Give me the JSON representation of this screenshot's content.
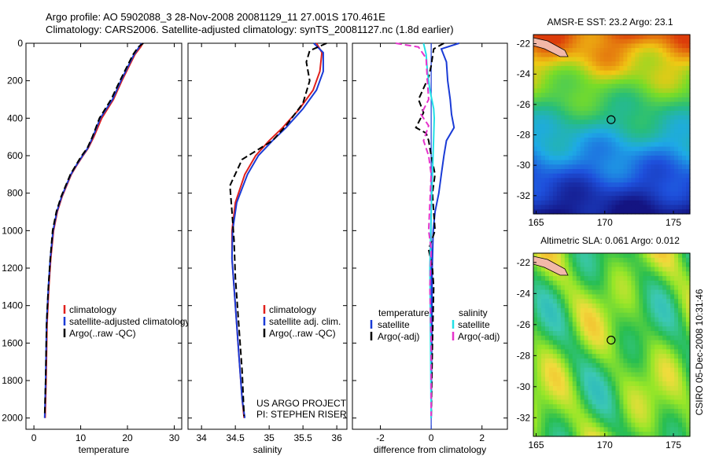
{
  "header": {
    "line1": "Argo profile: AO 5902088_3 28-Nov-2008 20081129_11 27.001S 170.461E",
    "line2": "Climatology: CARS2006. Satellite-adjusted climatology: synTS_20081127.nc (1.8d earlier)"
  },
  "credit": {
    "project": "US ARGO PROJECT",
    "pi": "PI: STEPHEN RISER",
    "stamp": "CSIRO 05-Dec-2008 10:31:46"
  },
  "colors": {
    "climatology": "#e0201c",
    "satellite": "#1a3bd6",
    "argo": "#000000",
    "satellite_diff": "#22e0e6",
    "argo_diff": "#e633cc"
  },
  "chart_data": [
    {
      "type": "line",
      "id": "temperature",
      "xlabel": "temperature",
      "ylabel": "",
      "xlim": [
        -1.7,
        31.6
      ],
      "ylim": [
        0,
        2060
      ],
      "y_reversed": true,
      "xticks": [
        0,
        10,
        20,
        30
      ],
      "yticks": [
        0,
        200,
        400,
        600,
        800,
        1000,
        1200,
        1400,
        1600,
        1800,
        2000
      ],
      "legend": [
        "climatology",
        "satellite-adjusted climatology",
        "Argo(..raw -QC)"
      ],
      "series": [
        {
          "name": "climatology",
          "x": [
            23.3,
            22.8,
            21.6,
            20.4,
            18.8,
            17.0,
            14.5,
            12.8,
            11.6,
            10.5,
            9.2,
            8.0,
            7.0,
            6.0,
            5.0,
            4.2,
            3.6,
            3.2,
            2.8,
            2.6,
            2.4
          ],
          "y": [
            0,
            20,
            60,
            120,
            200,
            300,
            400,
            500,
            560,
            600,
            650,
            700,
            760,
            820,
            900,
            1000,
            1150,
            1300,
            1500,
            1800,
            2000
          ]
        },
        {
          "name": "satellite-adjusted climatology",
          "x": [
            23.0,
            22.5,
            21.4,
            20.2,
            18.6,
            16.8,
            14.2,
            12.6,
            11.5,
            10.4,
            9.1,
            7.9,
            6.9,
            5.9,
            4.9,
            4.1,
            3.5,
            3.1,
            2.7,
            2.5,
            2.3
          ],
          "y": [
            0,
            20,
            60,
            120,
            200,
            300,
            400,
            500,
            560,
            600,
            650,
            700,
            760,
            820,
            900,
            1000,
            1150,
            1300,
            1500,
            1800,
            2000
          ]
        },
        {
          "name": "Argo(..raw -QC)",
          "x": [
            23.4,
            22.3,
            21.2,
            20.0,
            18.4,
            16.5,
            14.0,
            12.5,
            11.4,
            10.2,
            9.0,
            7.8,
            6.8,
            5.8,
            4.8,
            4.0,
            3.5,
            3.1,
            2.7,
            2.5,
            2.3
          ],
          "y": [
            0,
            20,
            60,
            120,
            200,
            300,
            400,
            500,
            560,
            600,
            650,
            700,
            760,
            820,
            900,
            1000,
            1150,
            1300,
            1500,
            1800,
            1990
          ]
        }
      ]
    },
    {
      "type": "line",
      "id": "salinity",
      "xlabel": "salinity",
      "ylabel": "",
      "xlim": [
        33.8,
        36.15
      ],
      "ylim": [
        0,
        2060
      ],
      "y_reversed": true,
      "xticks": [
        34,
        34.5,
        35,
        35.5,
        36
      ],
      "legend": [
        "climatology",
        "satellite adj. clim.",
        "Argo(..raw -QC)"
      ],
      "series": [
        {
          "name": "climatology",
          "x": [
            35.7,
            35.78,
            35.75,
            35.65,
            35.45,
            35.2,
            35.0,
            34.8,
            34.64,
            34.5,
            34.45,
            34.45,
            34.48,
            34.52,
            34.56,
            34.6,
            34.63
          ],
          "y": [
            0,
            50,
            150,
            250,
            350,
            450,
            520,
            600,
            700,
            850,
            1000,
            1150,
            1300,
            1500,
            1700,
            1900,
            2000
          ]
        },
        {
          "name": "satellite adj. clim.",
          "x": [
            35.66,
            35.8,
            35.8,
            35.7,
            35.5,
            35.25,
            35.05,
            34.84,
            34.68,
            34.52,
            34.46,
            34.45,
            34.48,
            34.52,
            34.56,
            34.6,
            34.64
          ],
          "y": [
            0,
            50,
            150,
            250,
            350,
            450,
            520,
            600,
            700,
            850,
            1000,
            1150,
            1300,
            1500,
            1700,
            1900,
            2000
          ]
        },
        {
          "name": "Argo(..raw -QC)",
          "x": [
            35.85,
            35.6,
            35.55,
            35.6,
            35.5,
            35.25,
            35.05,
            34.6,
            34.42,
            34.45,
            34.48,
            34.5,
            34.55,
            34.6,
            34.63
          ],
          "y": [
            0,
            40,
            100,
            200,
            320,
            440,
            520,
            620,
            760,
            900,
            1050,
            1250,
            1500,
            1750,
            1990
          ]
        }
      ]
    },
    {
      "type": "line",
      "id": "difference",
      "xlabel": "difference from climatology",
      "ylabel": "",
      "xlim": [
        -3.1,
        3.0
      ],
      "ylim": [
        0,
        2060
      ],
      "y_reversed": true,
      "xticks": [
        -2,
        0,
        2
      ],
      "legend": [
        "temperature",
        "satellite",
        "Argo(-adj)",
        "salinity",
        "satellite",
        "Argo(-adj)"
      ],
      "series": [
        {
          "name": "temperature satellite",
          "x": [
            1.1,
            0.4,
            0.6,
            0.65,
            0.75,
            0.8,
            0.9,
            0.6,
            0.5,
            0.4,
            0.3,
            0.15,
            0.08,
            0.04,
            0.02,
            0.0
          ],
          "y": [
            0,
            30,
            100,
            200,
            300,
            380,
            450,
            520,
            600,
            700,
            800,
            900,
            1000,
            1200,
            1600,
            2000
          ]
        },
        {
          "name": "temperature Argo(-adj)",
          "x": [
            0.5,
            0.1,
            0.0,
            -0.1,
            -0.5,
            -0.3,
            -0.6,
            -0.2,
            -0.1,
            0.0,
            0.15,
            0.05,
            0.1,
            0.15,
            -0.1,
            0.05,
            0.1,
            0.05,
            0.0
          ],
          "y": [
            0,
            30,
            120,
            180,
            300,
            370,
            450,
            480,
            520,
            600,
            700,
            800,
            900,
            1000,
            1100,
            1200,
            1300,
            1600,
            1990
          ]
        },
        {
          "name": "salinity satellite",
          "x": [
            -0.3,
            -0.2,
            -0.15,
            -0.05,
            0.1,
            0.12,
            0.1,
            0.05,
            0.0,
            -0.05,
            0.0
          ],
          "y": [
            0,
            60,
            150,
            250,
            350,
            400,
            500,
            700,
            900,
            1200,
            2000
          ]
        },
        {
          "name": "salinity Argo(-adj)",
          "x": [
            -1.4,
            -0.5,
            -0.2,
            -0.15,
            -0.1,
            -0.4,
            -0.1,
            -0.3,
            -0.1,
            0.0,
            -0.05,
            -0.1,
            0.0,
            -0.05,
            0.0,
            0.0
          ],
          "y": [
            0,
            20,
            80,
            200,
            300,
            380,
            440,
            520,
            600,
            700,
            850,
            1000,
            1100,
            1300,
            1600,
            1990
          ]
        }
      ]
    },
    {
      "type": "heatmap",
      "id": "sst-map",
      "title": "AMSR-E SST: 23.2 Argo: 23.1",
      "xlim": [
        164.8,
        176.2
      ],
      "ylim": [
        -33.2,
        -21.4
      ],
      "xticks": [
        165,
        170,
        175
      ],
      "yticks": [
        -22,
        -24,
        -26,
        -28,
        -30,
        -32
      ],
      "argo_position": {
        "lon": 170.461,
        "lat": -27.001
      }
    },
    {
      "type": "heatmap",
      "id": "sla-map",
      "title": "Altimetric SLA: 0.061 Argo: 0.012",
      "xlim": [
        164.8,
        176.2
      ],
      "ylim": [
        -33.2,
        -21.4
      ],
      "xticks": [
        165,
        170,
        175
      ],
      "yticks": [
        -22,
        -24,
        -26,
        -28,
        -30,
        -32
      ],
      "argo_position": {
        "lon": 170.461,
        "lat": -27.001
      }
    }
  ]
}
